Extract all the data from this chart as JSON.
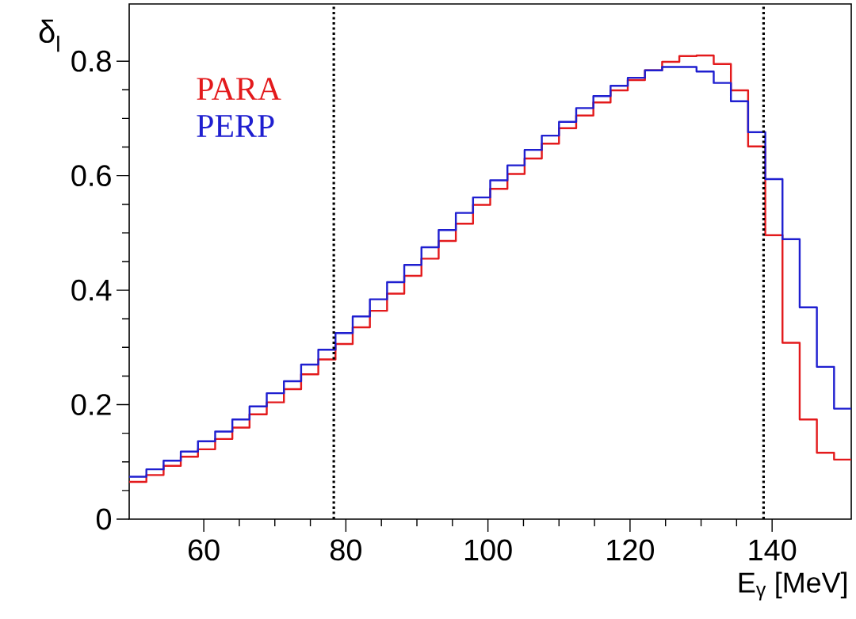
{
  "chart_data": {
    "type": "histogram",
    "xlabel": "E$_{γ}$ [MeV]",
    "ylabel": "δ$_{l}$",
    "bins": [
      49.5,
      51.92,
      54.34,
      56.76,
      59.18,
      61.6,
      64.02,
      66.44,
      68.86,
      71.28,
      73.7,
      76.12,
      78.54,
      80.96,
      83.38,
      85.8,
      88.22,
      90.64,
      93.06,
      95.48,
      97.9,
      100.32,
      102.74,
      105.16,
      107.58,
      110.0,
      112.42,
      114.84,
      117.26,
      119.68,
      122.1,
      124.52,
      126.94,
      129.36,
      131.78,
      134.2,
      136.62,
      139.04,
      141.46,
      143.88,
      146.3,
      148.72,
      151.14
    ],
    "series": [
      {
        "name": "PARA",
        "color": "#e31a1c",
        "values": [
          0.065,
          0.077,
          0.093,
          0.109,
          0.122,
          0.14,
          0.16,
          0.183,
          0.204,
          0.227,
          0.253,
          0.279,
          0.306,
          0.335,
          0.364,
          0.394,
          0.425,
          0.455,
          0.486,
          0.516,
          0.549,
          0.577,
          0.603,
          0.63,
          0.656,
          0.683,
          0.705,
          0.728,
          0.749,
          0.767,
          0.784,
          0.799,
          0.809,
          0.81,
          0.795,
          0.749,
          0.651,
          0.496,
          0.308,
          0.174,
          0.116,
          0.104
        ]
      },
      {
        "name": "PERP",
        "color": "#1f1fd0",
        "values": [
          0.074,
          0.087,
          0.102,
          0.118,
          0.136,
          0.153,
          0.174,
          0.197,
          0.22,
          0.241,
          0.27,
          0.296,
          0.325,
          0.354,
          0.384,
          0.414,
          0.444,
          0.475,
          0.505,
          0.535,
          0.562,
          0.592,
          0.618,
          0.645,
          0.67,
          0.694,
          0.718,
          0.739,
          0.757,
          0.771,
          0.784,
          0.79,
          0.79,
          0.782,
          0.762,
          0.73,
          0.676,
          0.594,
          0.489,
          0.37,
          0.266,
          0.193
        ]
      }
    ],
    "xlim": [
      49.5,
      151.14
    ],
    "ylim": [
      0,
      0.9
    ],
    "xticks": [
      60,
      80,
      100,
      120,
      140
    ],
    "yticks": [
      0,
      0.2,
      0.4,
      0.6,
      0.8
    ],
    "ref_lines": [
      {
        "axis": "x",
        "value": 78.3,
        "color": "#000000",
        "line_style": "dotted"
      },
      {
        "axis": "x",
        "value": 138.8,
        "color": "#000000",
        "line_style": "dotted"
      }
    ],
    "legend": "top left",
    "grid": false
  }
}
